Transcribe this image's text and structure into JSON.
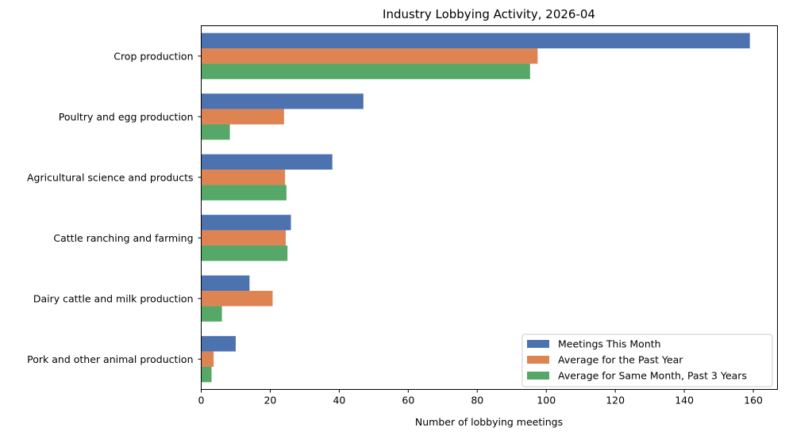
{
  "chart_data": {
    "type": "bar",
    "orientation": "horizontal",
    "title": "Industry Lobbying Activity, 2026-04",
    "xlabel": "Number of lobbying meetings",
    "ylabel": "",
    "xlim": [
      0,
      167
    ],
    "xticks": [
      0,
      20,
      40,
      60,
      80,
      100,
      120,
      140,
      160
    ],
    "grid": false,
    "legend_position": "lower-right",
    "categories": [
      "Crop production",
      "Poultry and egg production",
      "Agricultural science and products",
      "Cattle ranching and farming",
      "Dairy cattle and milk production",
      "Pork and other animal production"
    ],
    "series": [
      {
        "name": "Meetings This Month",
        "color": "#4c72b0",
        "values": [
          159,
          47,
          38,
          26,
          14,
          10
        ]
      },
      {
        "name": "Average for the Past Year",
        "color": "#dd8452",
        "values": [
          97.5,
          24,
          24.3,
          24.5,
          20.7,
          3.6
        ]
      },
      {
        "name": "Average for Same Month, Past 3 Years",
        "color": "#55a868",
        "values": [
          95.3,
          8.3,
          24.7,
          25,
          6,
          3
        ]
      }
    ]
  }
}
